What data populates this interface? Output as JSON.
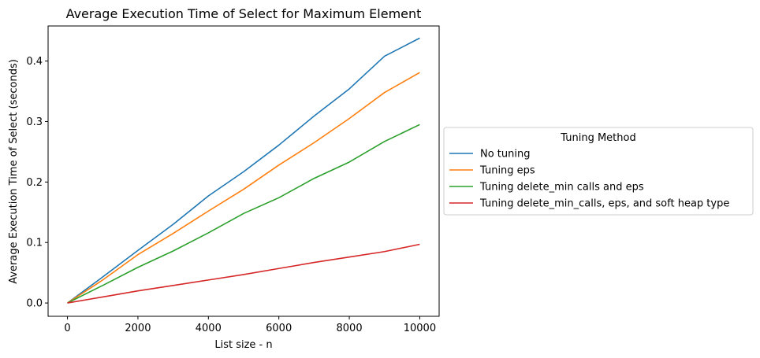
{
  "chart_data": {
    "type": "line",
    "title": "Average Execution Time of Select for Maximum Element",
    "xlabel": "List size - n",
    "ylabel": "Average Execution Time of Select (seconds)",
    "xlim": [
      -550,
      10550
    ],
    "ylim": [
      -0.022,
      0.458
    ],
    "xticks": [
      0,
      2000,
      4000,
      6000,
      8000,
      10000
    ],
    "yticks": [
      0.0,
      0.1,
      0.2,
      0.3,
      0.4
    ],
    "ytick_labels": [
      "0.0",
      "0.1",
      "0.2",
      "0.3",
      "0.4"
    ],
    "grid": false,
    "legend": {
      "title": "Tuning Method",
      "placement": "center-left outside right"
    },
    "x": [
      0,
      1000,
      2000,
      3000,
      4000,
      5000,
      6000,
      7000,
      8000,
      9000,
      10000
    ],
    "series": [
      {
        "name": "No tuning",
        "color": "#1f77b4",
        "values": [
          0.0,
          0.043,
          0.087,
          0.13,
          0.177,
          0.217,
          0.261,
          0.309,
          0.354,
          0.408,
          0.438
        ]
      },
      {
        "name": "Tuning eps",
        "color": "#ff7f0e",
        "values": [
          0.0,
          0.038,
          0.08,
          0.115,
          0.152,
          0.188,
          0.228,
          0.265,
          0.305,
          0.348,
          0.381
        ]
      },
      {
        "name": "Tuning delete_min calls and eps",
        "color": "#2ca02c",
        "values": [
          0.0,
          0.029,
          0.059,
          0.086,
          0.116,
          0.148,
          0.174,
          0.206,
          0.233,
          0.267,
          0.295
        ]
      },
      {
        "name": "Tuning delete_min_calls, eps, and soft heap type",
        "color": "#d62728",
        "values": [
          0.0,
          0.01,
          0.02,
          0.029,
          0.038,
          0.047,
          0.057,
          0.067,
          0.076,
          0.085,
          0.097
        ]
      }
    ]
  }
}
